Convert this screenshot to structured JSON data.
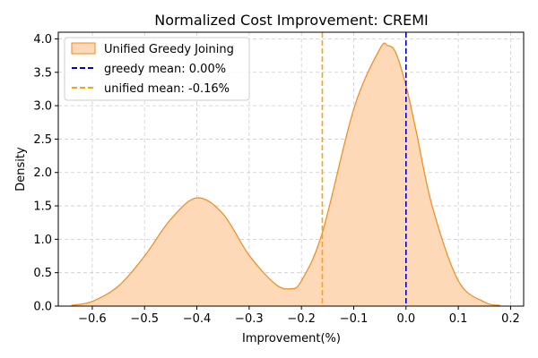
{
  "chart_data": {
    "type": "area",
    "title": "Normalized Cost Improvement: CREMI",
    "xlabel": "Improvement(%)",
    "ylabel": "Density",
    "xlim": [
      -0.665,
      0.225
    ],
    "ylim": [
      0,
      4.1
    ],
    "xticks": [
      -0.6,
      -0.5,
      -0.4,
      -0.3,
      -0.2,
      -0.1,
      0.0,
      0.1,
      0.2
    ],
    "xtick_labels": [
      "−0.6",
      "−0.5",
      "−0.4",
      "−0.3",
      "−0.2",
      "−0.1",
      "0.0",
      "0.1",
      "0.2"
    ],
    "yticks": [
      0.0,
      0.5,
      1.0,
      1.5,
      2.0,
      2.5,
      3.0,
      3.5,
      4.0
    ],
    "ytick_labels": [
      "0.0",
      "0.5",
      "1.0",
      "1.5",
      "2.0",
      "2.5",
      "3.0",
      "3.5",
      "4.0"
    ],
    "grid": true,
    "legend_position": "top-left",
    "series": [
      {
        "name": "Unified Greedy Joining",
        "kind": "kde-area",
        "line_color": "#f28a1e",
        "fill_color": "#fdd9b8",
        "x": [
          -0.64,
          -0.6,
          -0.55,
          -0.5,
          -0.45,
          -0.4,
          -0.35,
          -0.3,
          -0.25,
          -0.22,
          -0.2,
          -0.16,
          -0.1,
          -0.05,
          -0.035,
          -0.02,
          0.0,
          0.02,
          0.05,
          0.1,
          0.15,
          0.18
        ],
        "y": [
          0.01,
          0.07,
          0.3,
          0.75,
          1.3,
          1.62,
          1.38,
          0.76,
          0.33,
          0.26,
          0.38,
          1.1,
          2.95,
          3.85,
          3.9,
          3.8,
          3.3,
          2.6,
          1.5,
          0.38,
          0.06,
          0.01
        ]
      }
    ],
    "vlines": [
      {
        "name": "greedy mean: 0.00%",
        "x": 0.0,
        "color": "#0000cc",
        "style": "dashed"
      },
      {
        "name": "unified mean: -0.16%",
        "x": -0.16,
        "color": "#ffa500",
        "style": "dashed"
      }
    ]
  }
}
